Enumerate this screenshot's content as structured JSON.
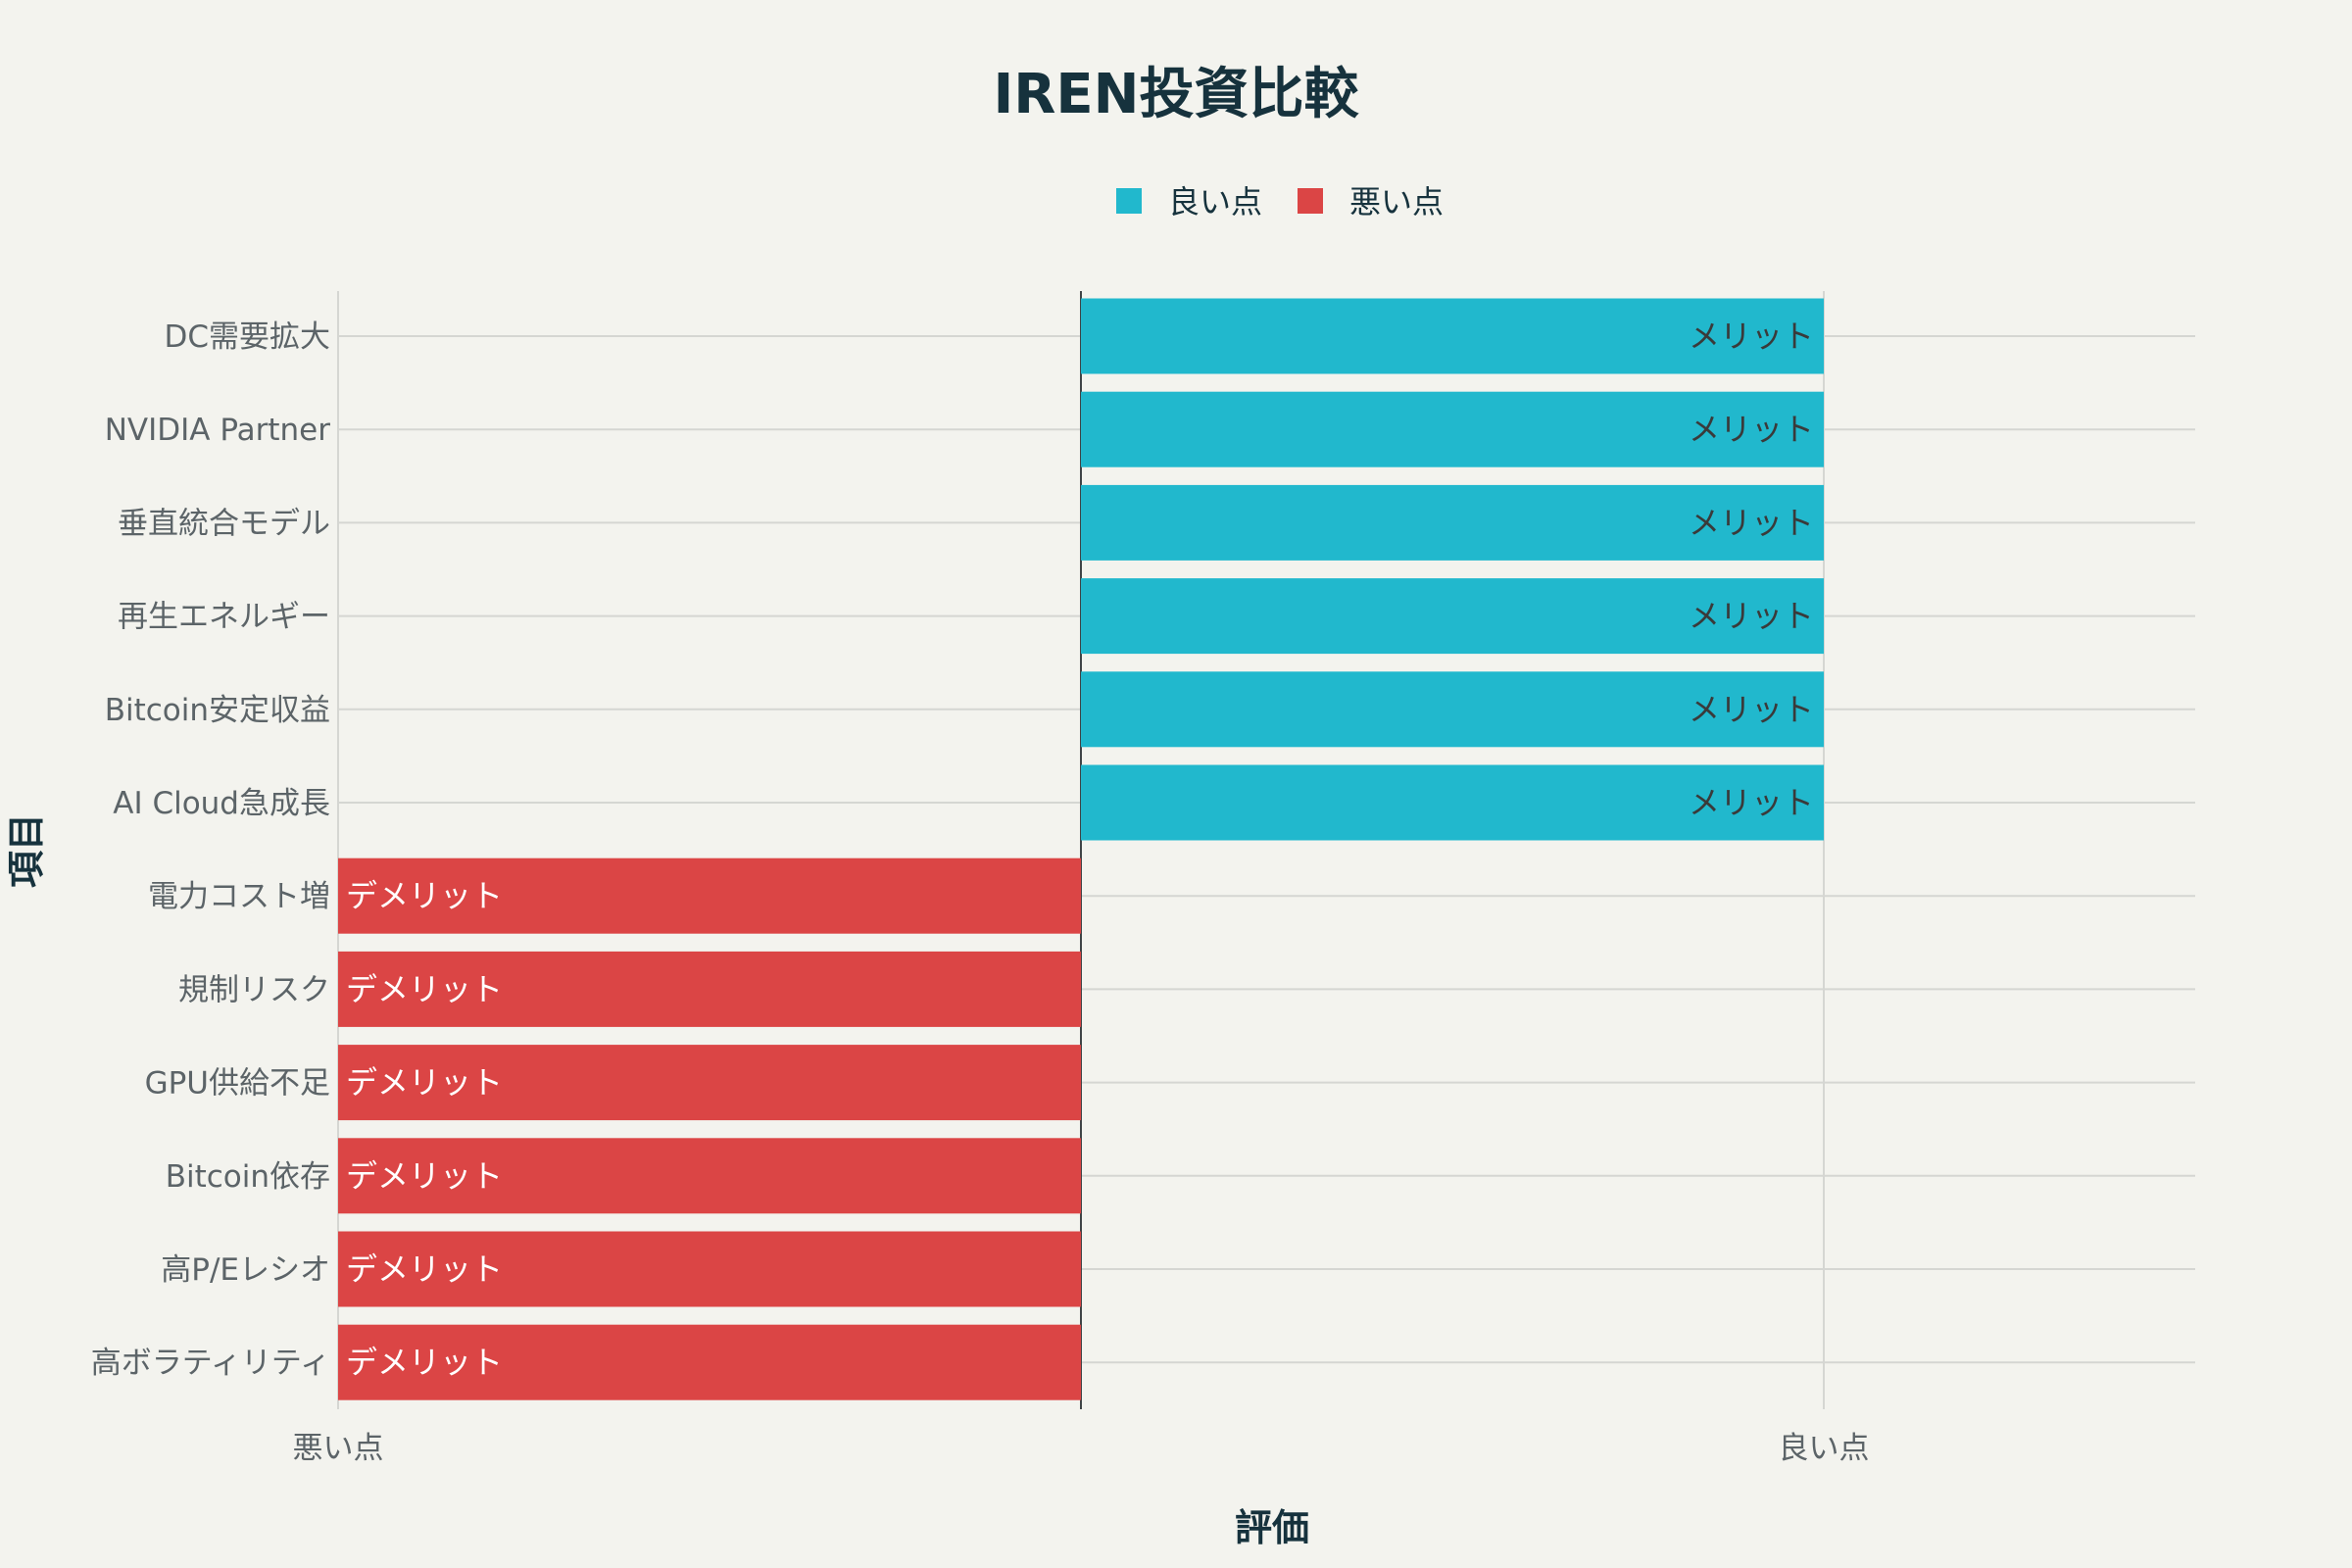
{
  "chart_data": {
    "type": "bar",
    "orientation": "horizontal",
    "title": "IREN投資比較",
    "xlabel": "評価",
    "ylabel": "項目",
    "xlim": [
      -1,
      1.5
    ],
    "x_ticks": [
      {
        "value": -1,
        "label": "悪い点"
      },
      {
        "value": 1,
        "label": "良い点"
      }
    ],
    "legend_position": "top-center",
    "grid": true,
    "categories": [
      "DC需要拡大",
      "NVIDIA Partner",
      "垂直統合モデル",
      "再生エネルギー",
      "Bitcoin安定収益",
      "AI Cloud急成長",
      "電力コスト増",
      "規制リスク",
      "GPU供給不足",
      "Bitcoin依存",
      "高P/Eレシオ",
      "高ボラティリティ"
    ],
    "series": [
      {
        "name": "良い点",
        "color": "#21b8cd",
        "label_color": "#3a3a3a",
        "values": [
          1,
          1,
          1,
          1,
          1,
          1,
          null,
          null,
          null,
          null,
          null,
          null
        ],
        "labels": [
          "メリット",
          "メリット",
          "メリット",
          "メリット",
          "メリット",
          "メリット",
          null,
          null,
          null,
          null,
          null,
          null
        ]
      },
      {
        "name": "悪い点",
        "color": "#db4545",
        "label_color": "#ffffff",
        "values": [
          null,
          null,
          null,
          null,
          null,
          null,
          -1,
          -1,
          -1,
          -1,
          -1,
          -1
        ],
        "labels": [
          null,
          null,
          null,
          null,
          null,
          null,
          "デメリット",
          "デメリット",
          "デメリット",
          "デメリット",
          "デメリット",
          "デメリット"
        ]
      }
    ]
  }
}
